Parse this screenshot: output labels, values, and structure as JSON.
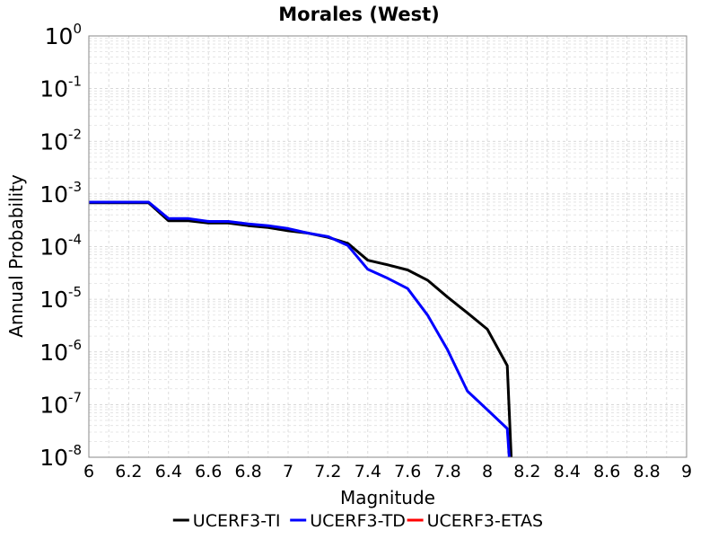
{
  "chart_data": {
    "type": "line",
    "title": "Morales (West)",
    "xlabel": "Magnitude",
    "ylabel": "Annual Probability",
    "xlim": [
      6,
      9
    ],
    "ylim": [
      1e-08,
      1
    ],
    "yscale": "log",
    "grid": true,
    "legend_position": "bottom",
    "x_ticks": [
      "6",
      "6.2",
      "6.4",
      "6.6",
      "6.8",
      "7",
      "7.2",
      "7.4",
      "7.6",
      "7.8",
      "8",
      "8.2",
      "8.4",
      "8.6",
      "8.8",
      "9"
    ],
    "y_ticks": [
      {
        "base": "10",
        "exp": "0"
      },
      {
        "base": "10",
        "exp": "-1"
      },
      {
        "base": "10",
        "exp": "-2"
      },
      {
        "base": "10",
        "exp": "-3"
      },
      {
        "base": "10",
        "exp": "-4"
      },
      {
        "base": "10",
        "exp": "-5"
      },
      {
        "base": "10",
        "exp": "-6"
      },
      {
        "base": "10",
        "exp": "-7"
      },
      {
        "base": "10",
        "exp": "-8"
      }
    ],
    "series": [
      {
        "name": "UCERF3-TI",
        "color": "#000000",
        "points": [
          [
            6.0,
            0.00068
          ],
          [
            6.1,
            0.00068
          ],
          [
            6.2,
            0.00068
          ],
          [
            6.3,
            0.00068
          ],
          [
            6.4,
            0.00031
          ],
          [
            6.5,
            0.00031
          ],
          [
            6.6,
            0.00028
          ],
          [
            6.7,
            0.00028
          ],
          [
            6.8,
            0.00025
          ],
          [
            6.9,
            0.00023
          ],
          [
            7.0,
            0.0002
          ],
          [
            7.1,
            0.00018
          ],
          [
            7.2,
            0.00015
          ],
          [
            7.3,
            0.000115
          ],
          [
            7.4,
            5.5e-05
          ],
          [
            7.5,
            4.5e-05
          ],
          [
            7.6,
            3.6e-05
          ],
          [
            7.7,
            2.3e-05
          ],
          [
            7.8,
            1.1e-05
          ],
          [
            7.9,
            5.5e-06
          ],
          [
            8.0,
            2.7e-06
          ],
          [
            8.1,
            5.5e-07
          ],
          [
            8.12,
            1e-08
          ]
        ]
      },
      {
        "name": "UCERF3-TD",
        "color": "#0000ff",
        "points": [
          [
            6.0,
            0.0007
          ],
          [
            6.1,
            0.0007
          ],
          [
            6.2,
            0.0007
          ],
          [
            6.3,
            0.0007
          ],
          [
            6.4,
            0.00034
          ],
          [
            6.5,
            0.00034
          ],
          [
            6.6,
            0.0003
          ],
          [
            6.7,
            0.0003
          ],
          [
            6.8,
            0.00027
          ],
          [
            6.9,
            0.00025
          ],
          [
            7.0,
            0.00022
          ],
          [
            7.1,
            0.00018
          ],
          [
            7.2,
            0.000155
          ],
          [
            7.3,
            0.000105
          ],
          [
            7.4,
            3.7e-05
          ],
          [
            7.5,
            2.5e-05
          ],
          [
            7.6,
            1.6e-05
          ],
          [
            7.7,
            5e-06
          ],
          [
            7.8,
            1.1e-06
          ],
          [
            7.9,
            1.8e-07
          ],
          [
            8.0,
            8e-08
          ],
          [
            8.1,
            3.5e-08
          ],
          [
            8.11,
            1e-08
          ]
        ]
      },
      {
        "name": "UCERF3-ETAS",
        "color": "#ff0000",
        "points": []
      }
    ]
  }
}
